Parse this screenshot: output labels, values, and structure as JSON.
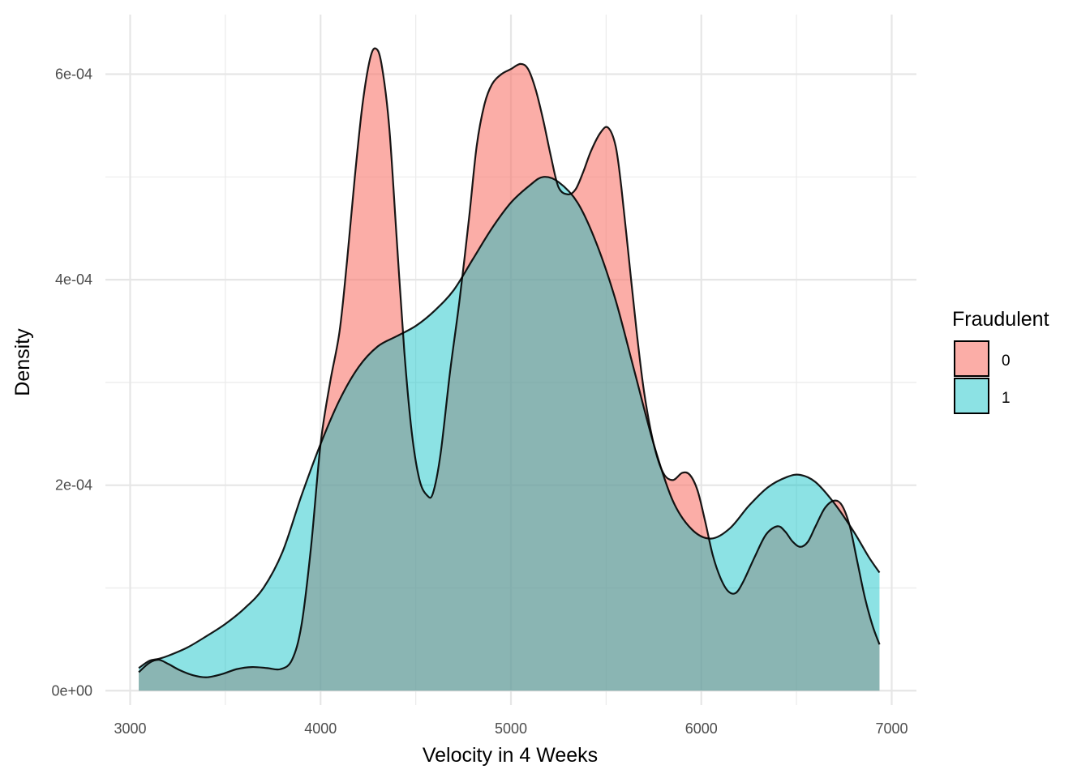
{
  "chart_data": {
    "type": "area",
    "subtype": "density",
    "title": "",
    "xlabel": "Velocity in 4 Weeks",
    "ylabel": "Density",
    "xlim": [
      2870,
      7130
    ],
    "ylim": [
      -1.4e-05,
      0.000658
    ],
    "x_ticks": [
      3000,
      4000,
      5000,
      6000,
      7000
    ],
    "x_tick_labels": [
      "3000",
      "4000",
      "5000",
      "6000",
      "7000"
    ],
    "y_ticks": [
      0,
      0.0002,
      0.0004,
      0.0006
    ],
    "y_tick_labels": [
      "0e+00",
      "2e-04",
      "4e-04",
      "6e-04"
    ],
    "grid": true,
    "legend": {
      "title": "Fraudulent",
      "position": "right",
      "entries": [
        {
          "label": "0",
          "color": "#F8766D"
        },
        {
          "label": "1",
          "color": "#00BFC4"
        }
      ]
    },
    "series": [
      {
        "name": "0",
        "color": "#F8766D",
        "opacity": 0.6,
        "points": [
          [
            3045,
            1.8e-05
          ],
          [
            3100,
            2.7e-05
          ],
          [
            3150,
            3e-05
          ],
          [
            3200,
            2.6e-05
          ],
          [
            3260,
            2e-05
          ],
          [
            3330,
            1.5e-05
          ],
          [
            3400,
            1.3e-05
          ],
          [
            3480,
            1.6e-05
          ],
          [
            3560,
            2.1e-05
          ],
          [
            3640,
            2.3e-05
          ],
          [
            3720,
            2.2e-05
          ],
          [
            3790,
            2.1e-05
          ],
          [
            3850,
            3e-05
          ],
          [
            3900,
            6.4e-05
          ],
          [
            3950,
            0.00014
          ],
          [
            4000,
            0.00024
          ],
          [
            4050,
            0.0003
          ],
          [
            4100,
            0.00035
          ],
          [
            4140,
            0.00042
          ],
          [
            4180,
            0.0005
          ],
          [
            4220,
            0.00057
          ],
          [
            4260,
            0.000615
          ],
          [
            4290,
            0.000625
          ],
          [
            4320,
            0.00061
          ],
          [
            4360,
            0.00055
          ],
          [
            4400,
            0.00044
          ],
          [
            4440,
            0.00033
          ],
          [
            4480,
            0.00025
          ],
          [
            4520,
            0.000205
          ],
          [
            4560,
            0.00019
          ],
          [
            4590,
            0.000192
          ],
          [
            4630,
            0.00023
          ],
          [
            4680,
            0.00031
          ],
          [
            4730,
            0.00038
          ],
          [
            4780,
            0.00046
          ],
          [
            4820,
            0.00053
          ],
          [
            4860,
            0.00057
          ],
          [
            4900,
            0.00059
          ],
          [
            4950,
            0.0006
          ],
          [
            5000,
            0.000605
          ],
          [
            5050,
            0.00061
          ],
          [
            5090,
            0.000605
          ],
          [
            5130,
            0.000585
          ],
          [
            5170,
            0.000555
          ],
          [
            5210,
            0.00052
          ],
          [
            5250,
            0.00049
          ],
          [
            5300,
            0.000483
          ],
          [
            5340,
            0.000488
          ],
          [
            5380,
            0.000505
          ],
          [
            5420,
            0.000525
          ],
          [
            5470,
            0.000543
          ],
          [
            5510,
            0.000548
          ],
          [
            5550,
            0.00053
          ],
          [
            5580,
            0.00049
          ],
          [
            5620,
            0.00042
          ],
          [
            5660,
            0.00035
          ],
          [
            5700,
            0.00029
          ],
          [
            5750,
            0.00024
          ],
          [
            5800,
            0.000212
          ],
          [
            5850,
            0.000205
          ],
          [
            5900,
            0.000212
          ],
          [
            5940,
            0.00021
          ],
          [
            5980,
            0.000195
          ],
          [
            6020,
            0.000165
          ],
          [
            6060,
            0.000132
          ],
          [
            6100,
            0.00011
          ],
          [
            6140,
            9.7e-05
          ],
          [
            6180,
            9.5e-05
          ],
          [
            6220,
            0.000106
          ],
          [
            6280,
            0.00013
          ],
          [
            6340,
            0.000152
          ],
          [
            6400,
            0.00016
          ],
          [
            6440,
            0.000155
          ],
          [
            6480,
            0.000145
          ],
          [
            6520,
            0.00014
          ],
          [
            6560,
            0.000145
          ],
          [
            6600,
            0.00016
          ],
          [
            6650,
            0.000178
          ],
          [
            6700,
            0.000185
          ],
          [
            6740,
            0.00018
          ],
          [
            6780,
            0.00016
          ],
          [
            6820,
            0.000125
          ],
          [
            6860,
            9e-05
          ],
          [
            6900,
            6.3e-05
          ],
          [
            6936,
            4.5e-05
          ]
        ]
      },
      {
        "name": "1",
        "color": "#00BFC4",
        "opacity": 0.45,
        "points": [
          [
            3045,
            2.2e-05
          ],
          [
            3100,
            2.9e-05
          ],
          [
            3150,
            3.1e-05
          ],
          [
            3200,
            3.4e-05
          ],
          [
            3300,
            4.2e-05
          ],
          [
            3400,
            5.3e-05
          ],
          [
            3500,
            6.5e-05
          ],
          [
            3600,
            8e-05
          ],
          [
            3700,
            0.0001
          ],
          [
            3800,
            0.000135
          ],
          [
            3900,
            0.00019
          ],
          [
            4000,
            0.00024
          ],
          [
            4100,
            0.000283
          ],
          [
            4200,
            0.000315
          ],
          [
            4300,
            0.000335
          ],
          [
            4400,
            0.000345
          ],
          [
            4500,
            0.000355
          ],
          [
            4600,
            0.00037
          ],
          [
            4700,
            0.00039
          ],
          [
            4800,
            0.00042
          ],
          [
            4900,
            0.00045
          ],
          [
            5000,
            0.000475
          ],
          [
            5100,
            0.000492
          ],
          [
            5170,
            0.0005
          ],
          [
            5250,
            0.000495
          ],
          [
            5350,
            0.000475
          ],
          [
            5450,
            0.000435
          ],
          [
            5550,
            0.00038
          ],
          [
            5650,
            0.00031
          ],
          [
            5750,
            0.00024
          ],
          [
            5850,
            0.000185
          ],
          [
            5950,
            0.000157
          ],
          [
            6050,
            0.000148
          ],
          [
            6150,
            0.000158
          ],
          [
            6250,
            0.00018
          ],
          [
            6350,
            0.000198
          ],
          [
            6450,
            0.000208
          ],
          [
            6520,
            0.00021
          ],
          [
            6600,
            0.000203
          ],
          [
            6700,
            0.000182
          ],
          [
            6800,
            0.000155
          ],
          [
            6880,
            0.00013
          ],
          [
            6936,
            0.000115
          ]
        ]
      }
    ]
  }
}
